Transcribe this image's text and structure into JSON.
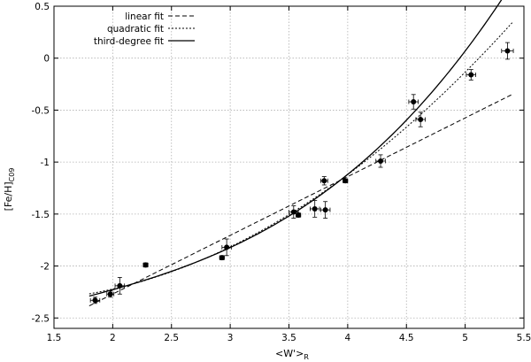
{
  "chart_data": {
    "type": "scatter",
    "title": "",
    "xlabel": "<W'>",
    "xlabel_sub": "R",
    "ylabel": "[Fe/H]",
    "ylabel_sub": "C09",
    "xlim": [
      1.5,
      5.5
    ],
    "ylim": [
      -2.6,
      0.5
    ],
    "xticks": [
      1.5,
      2,
      2.5,
      3,
      3.5,
      4,
      4.5,
      5,
      5.5
    ],
    "xtick_labels": [
      "1.5",
      "2",
      "2.5",
      "3",
      "3.5",
      "4",
      "4.5",
      "5",
      "5.5"
    ],
    "yticks": [
      -2.5,
      -2,
      -1.5,
      -1,
      -0.5,
      0,
      0.5
    ],
    "ytick_labels": [
      "-2.5",
      "-2",
      "-1.5",
      "-1",
      "-0.5",
      "0",
      "0.5"
    ],
    "grid": true,
    "legend_position": "top-left",
    "points": [
      {
        "x": 1.85,
        "y": -2.33,
        "xerr": 0.04,
        "yerr": 0.03
      },
      {
        "x": 1.98,
        "y": -2.27,
        "xerr": 0.03,
        "yerr": 0.03
      },
      {
        "x": 2.06,
        "y": -2.19,
        "xerr": 0.04,
        "yerr": 0.08
      },
      {
        "x": 2.28,
        "y": -1.99,
        "xerr": 0.02,
        "yerr": 0.02
      },
      {
        "x": 2.93,
        "y": -1.92,
        "xerr": 0.02,
        "yerr": 0.02
      },
      {
        "x": 2.97,
        "y": -1.82,
        "xerr": 0.04,
        "yerr": 0.08
      },
      {
        "x": 3.54,
        "y": -1.48,
        "xerr": 0.04,
        "yerr": 0.06
      },
      {
        "x": 3.58,
        "y": -1.51,
        "xerr": 0.02,
        "yerr": 0.02
      },
      {
        "x": 3.72,
        "y": -1.45,
        "xerr": 0.04,
        "yerr": 0.08
      },
      {
        "x": 3.8,
        "y": -1.18,
        "xerr": 0.03,
        "yerr": 0.04
      },
      {
        "x": 3.81,
        "y": -1.46,
        "xerr": 0.04,
        "yerr": 0.08
      },
      {
        "x": 3.98,
        "y": -1.18,
        "xerr": 0.02,
        "yerr": 0.02
      },
      {
        "x": 4.28,
        "y": -0.99,
        "xerr": 0.04,
        "yerr": 0.06
      },
      {
        "x": 4.56,
        "y": -0.42,
        "xerr": 0.04,
        "yerr": 0.07
      },
      {
        "x": 4.62,
        "y": -0.59,
        "xerr": 0.04,
        "yerr": 0.07
      },
      {
        "x": 5.05,
        "y": -0.16,
        "xerr": 0.04,
        "yerr": 0.05
      },
      {
        "x": 5.36,
        "y": 0.07,
        "xerr": 0.05,
        "yerr": 0.08
      }
    ],
    "series": [
      {
        "name": "linear fit",
        "style": "dashed",
        "x_range": [
          1.8,
          5.4
        ],
        "coeffs": [
          -3.4,
          0.565
        ]
      },
      {
        "name": "quadratic fit",
        "style": "dotted",
        "x_range": [
          1.8,
          5.4
        ],
        "coeffs": [
          -2.162,
          -0.32,
          0.1451
        ]
      },
      {
        "name": "third-degree fit",
        "style": "solid",
        "x_range": [
          1.8,
          5.4
        ],
        "coeffs": [
          -2.874,
          0.451,
          -0.125,
          0.0305
        ]
      }
    ]
  }
}
